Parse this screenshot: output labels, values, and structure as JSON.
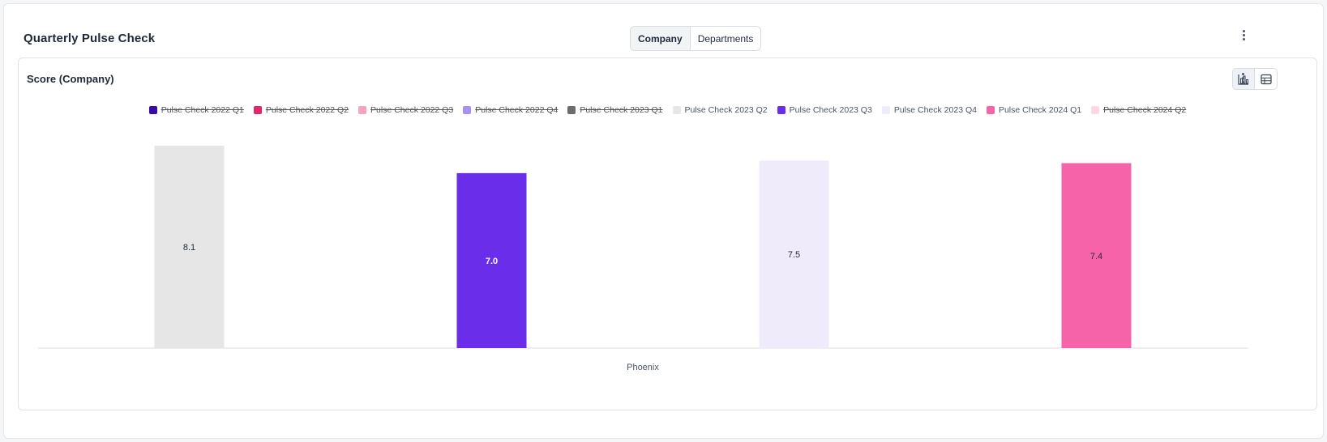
{
  "header": {
    "title": "Quarterly Pulse Check",
    "tabs": [
      {
        "label": "Company",
        "active": true
      },
      {
        "label": "Departments",
        "active": false
      }
    ]
  },
  "chart_panel": {
    "title": "Score (Company)",
    "views": [
      "bar-chart-icon",
      "table-icon"
    ]
  },
  "chart_data": {
    "type": "bar",
    "categories": [
      "Phoenix"
    ],
    "ylim": [
      0,
      10
    ],
    "legend_position": "top-center",
    "grid": false,
    "legend": [
      {
        "name": "Pulse Check 2022 Q1",
        "color": "#3b0ca3",
        "visible": false
      },
      {
        "name": "Pulse Check 2022 Q2",
        "color": "#e3256b",
        "visible": false
      },
      {
        "name": "Pulse Check 2022 Q3",
        "color": "#f4a3c0",
        "visible": false
      },
      {
        "name": "Pulse Check 2022 Q4",
        "color": "#a892ef",
        "visible": false
      },
      {
        "name": "Pulse Check 2023 Q1",
        "color": "#6b6b6b",
        "visible": false
      },
      {
        "name": "Pulse Check 2023 Q2",
        "color": "#e6e6e6",
        "visible": true
      },
      {
        "name": "Pulse Check 2023 Q3",
        "color": "#6a2eea",
        "visible": true
      },
      {
        "name": "Pulse Check 2023 Q4",
        "color": "#f0ebfb",
        "visible": true
      },
      {
        "name": "Pulse Check 2024 Q1",
        "color": "#f763a8",
        "visible": true
      },
      {
        "name": "Pulse Check 2024 Q2",
        "color": "#fbd9e4",
        "visible": false
      }
    ],
    "series": [
      {
        "name": "Pulse Check 2023 Q2",
        "values": [
          8.1
        ],
        "labels": [
          "8.1"
        ],
        "color": "#e6e6e6",
        "label_color": "#1f2937"
      },
      {
        "name": "Pulse Check 2023 Q3",
        "values": [
          7.0
        ],
        "labels": [
          "7.0"
        ],
        "color": "#6a2eea",
        "label_color": "#ffffff"
      },
      {
        "name": "Pulse Check 2023 Q4",
        "values": [
          7.5
        ],
        "labels": [
          "7.5"
        ],
        "color": "#f0ebfb",
        "label_color": "#1f2937"
      },
      {
        "name": "Pulse Check 2024 Q1",
        "values": [
          7.4
        ],
        "labels": [
          "7.4"
        ],
        "color": "#f763a8",
        "label_color": "#1f2937"
      }
    ]
  }
}
